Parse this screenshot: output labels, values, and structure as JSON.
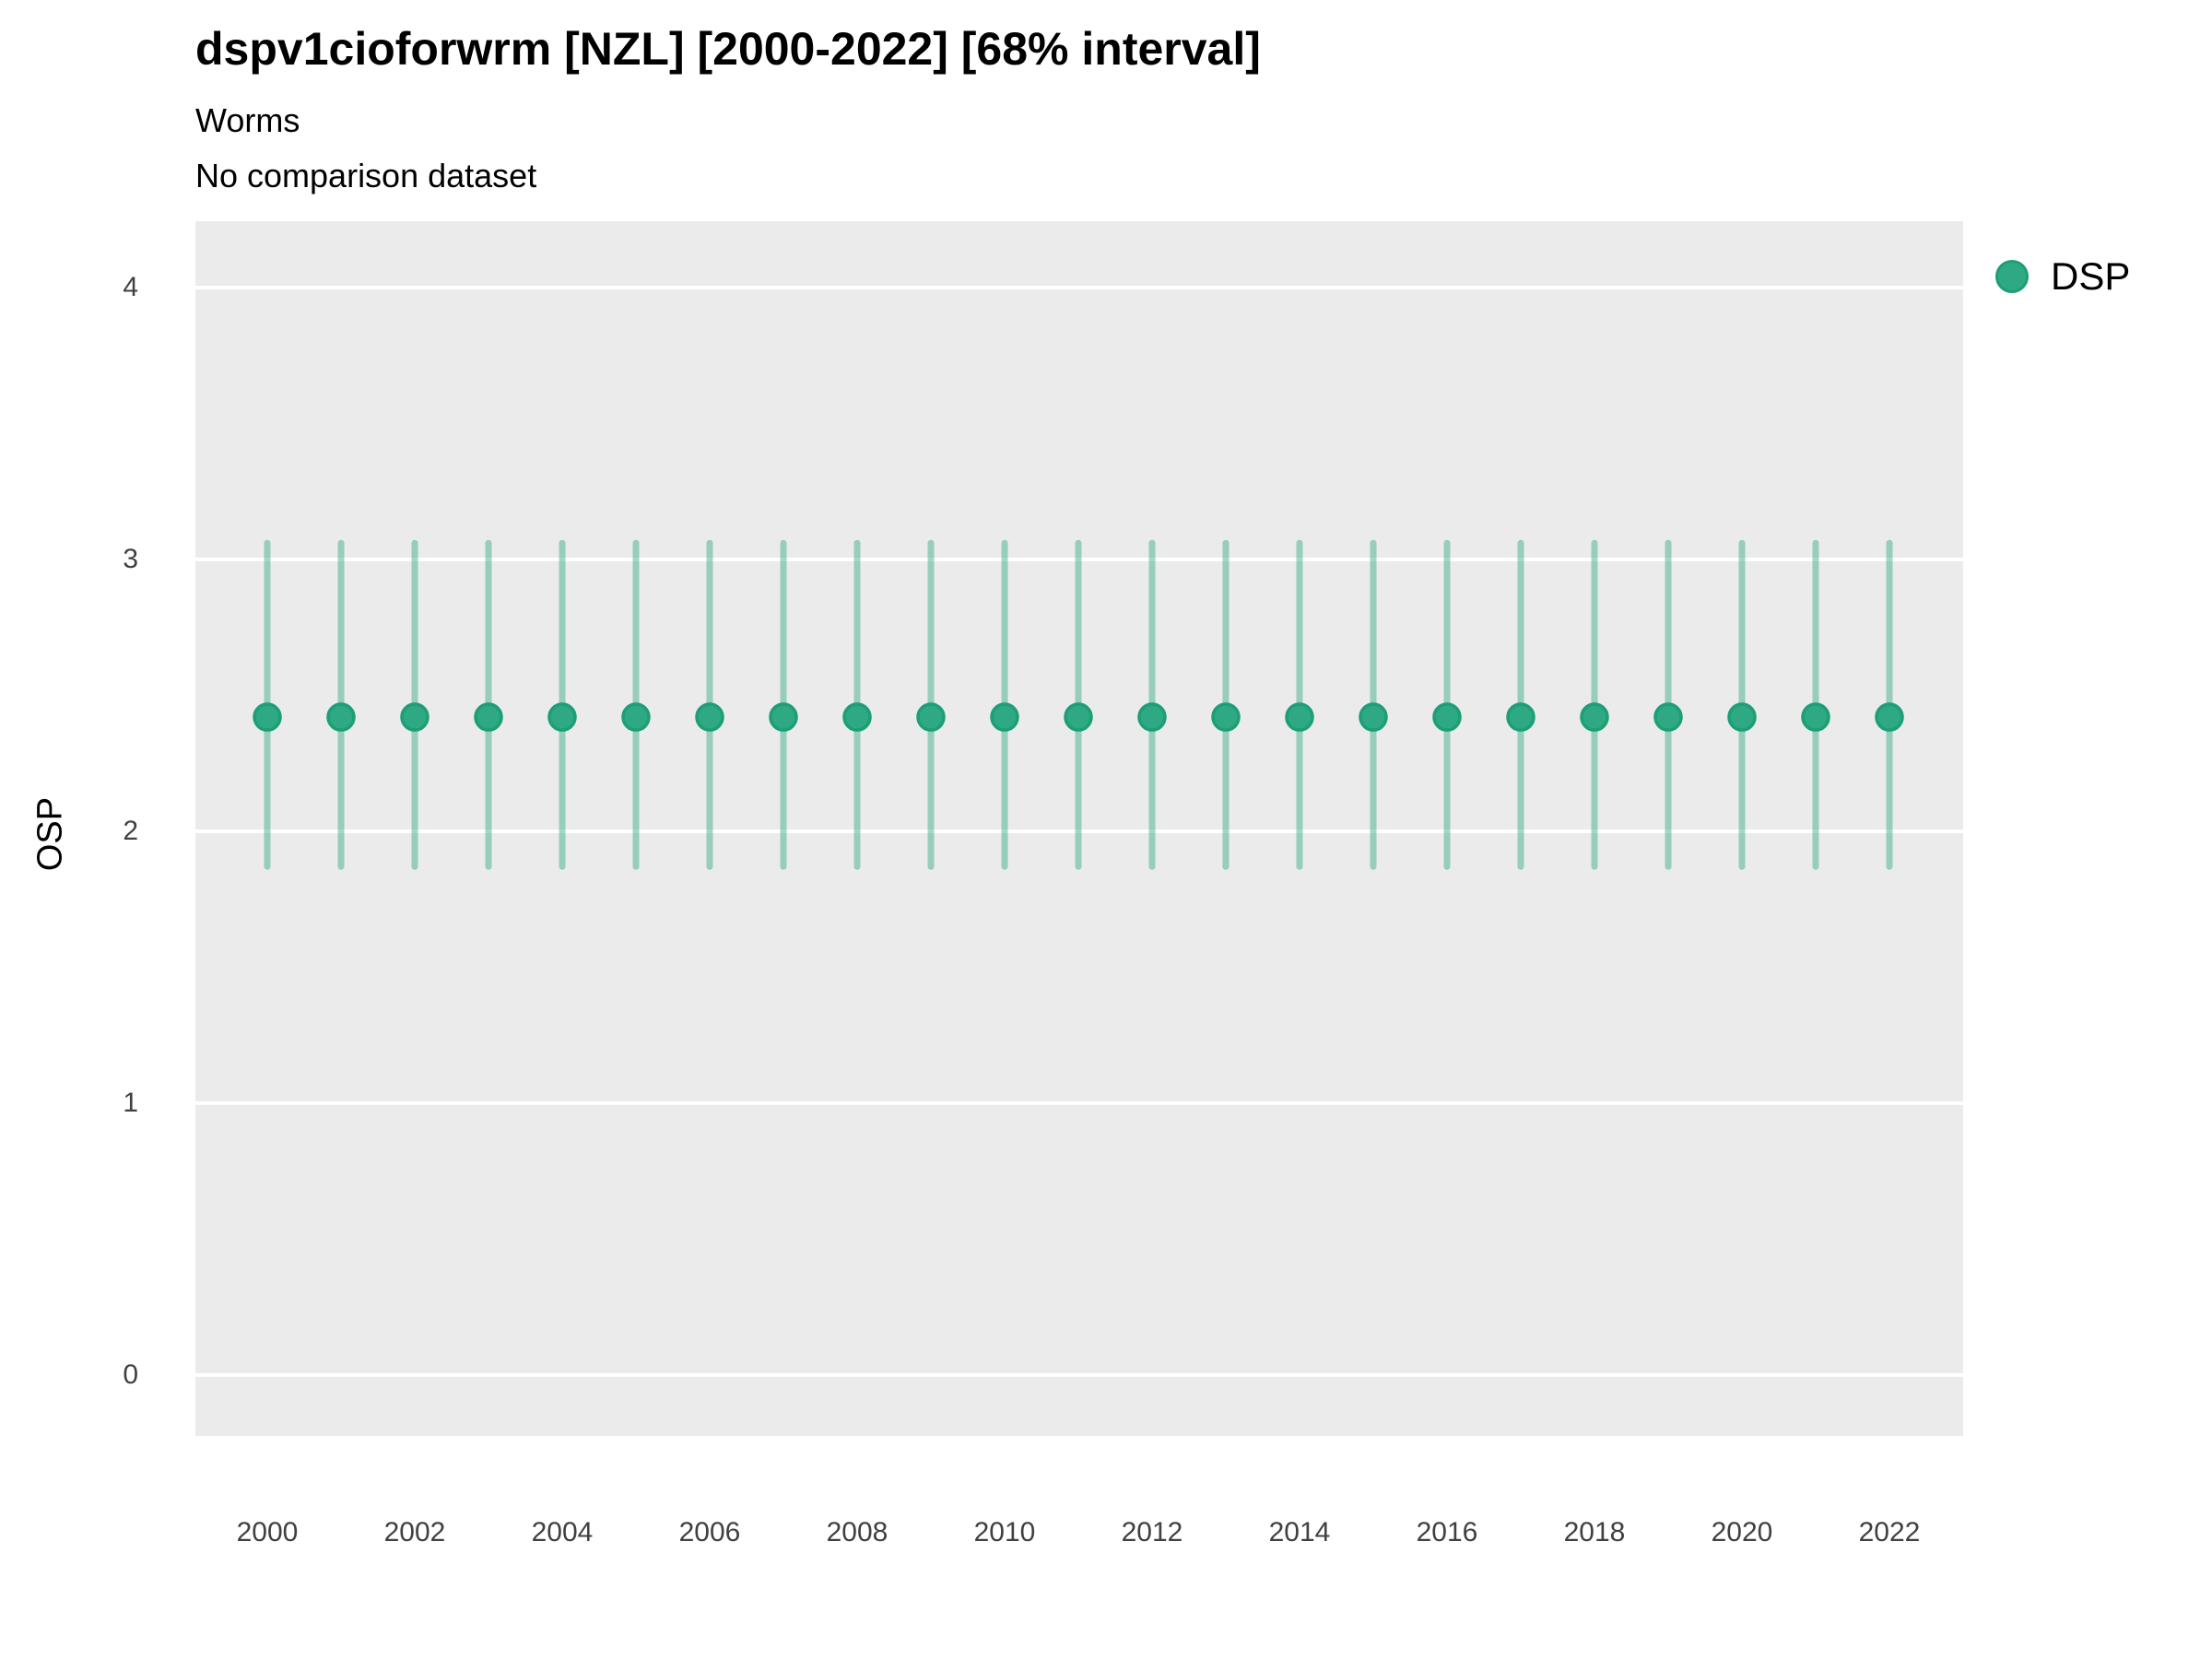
{
  "header": {
    "title": "dspv1cioforwrm [NZL] [2000-2022] [68% interval]",
    "subtitle": "Worms",
    "comparison_note": "No comparison dataset"
  },
  "chart_data": {
    "type": "scatter",
    "title": "dspv1cioforwrm [NZL] [2000-2022] [68% interval]",
    "subtitle": "Worms",
    "note": "No comparison dataset",
    "xlabel": "",
    "ylabel": "OSP",
    "x": [
      2000,
      2001,
      2002,
      2003,
      2004,
      2005,
      2006,
      2007,
      2008,
      2009,
      2010,
      2011,
      2012,
      2013,
      2014,
      2015,
      2016,
      2017,
      2018,
      2019,
      2020,
      2021,
      2022
    ],
    "series": [
      {
        "name": "DSP",
        "mean": [
          2.42,
          2.42,
          2.42,
          2.42,
          2.42,
          2.42,
          2.42,
          2.42,
          2.42,
          2.42,
          2.42,
          2.42,
          2.42,
          2.42,
          2.42,
          2.42,
          2.42,
          2.42,
          2.42,
          2.42,
          2.42,
          2.42,
          2.42
        ],
        "lower_68": [
          1.87,
          1.87,
          1.87,
          1.87,
          1.87,
          1.87,
          1.87,
          1.87,
          1.87,
          1.87,
          1.87,
          1.87,
          1.87,
          1.87,
          1.87,
          1.87,
          1.87,
          1.87,
          1.87,
          1.87,
          1.87,
          1.87,
          1.87
        ],
        "upper_68": [
          3.06,
          3.06,
          3.06,
          3.06,
          3.06,
          3.06,
          3.06,
          3.06,
          3.06,
          3.06,
          3.06,
          3.06,
          3.06,
          3.06,
          3.06,
          3.06,
          3.06,
          3.06,
          3.06,
          3.06,
          3.06,
          3.06,
          3.06
        ]
      }
    ],
    "ylim": [
      -0.224,
      4.244
    ],
    "yticks": [
      0,
      1,
      2,
      3,
      4
    ],
    "xticks": [
      2000,
      2002,
      2004,
      2006,
      2008,
      2010,
      2012,
      2014,
      2016,
      2018,
      2020,
      2022
    ],
    "grid": "major horizontal white lines on grey panel",
    "legend_position": "right",
    "colors": {
      "point_fill": "#2FA983",
      "point_stroke": "#1C9E76",
      "errorbar": "#2EA883",
      "errorbar_alpha": 0.45,
      "panel_bg": "#EBEBEB",
      "grid": "#FFFFFF",
      "tick_text": "#404040",
      "text": "#000000"
    }
  }
}
